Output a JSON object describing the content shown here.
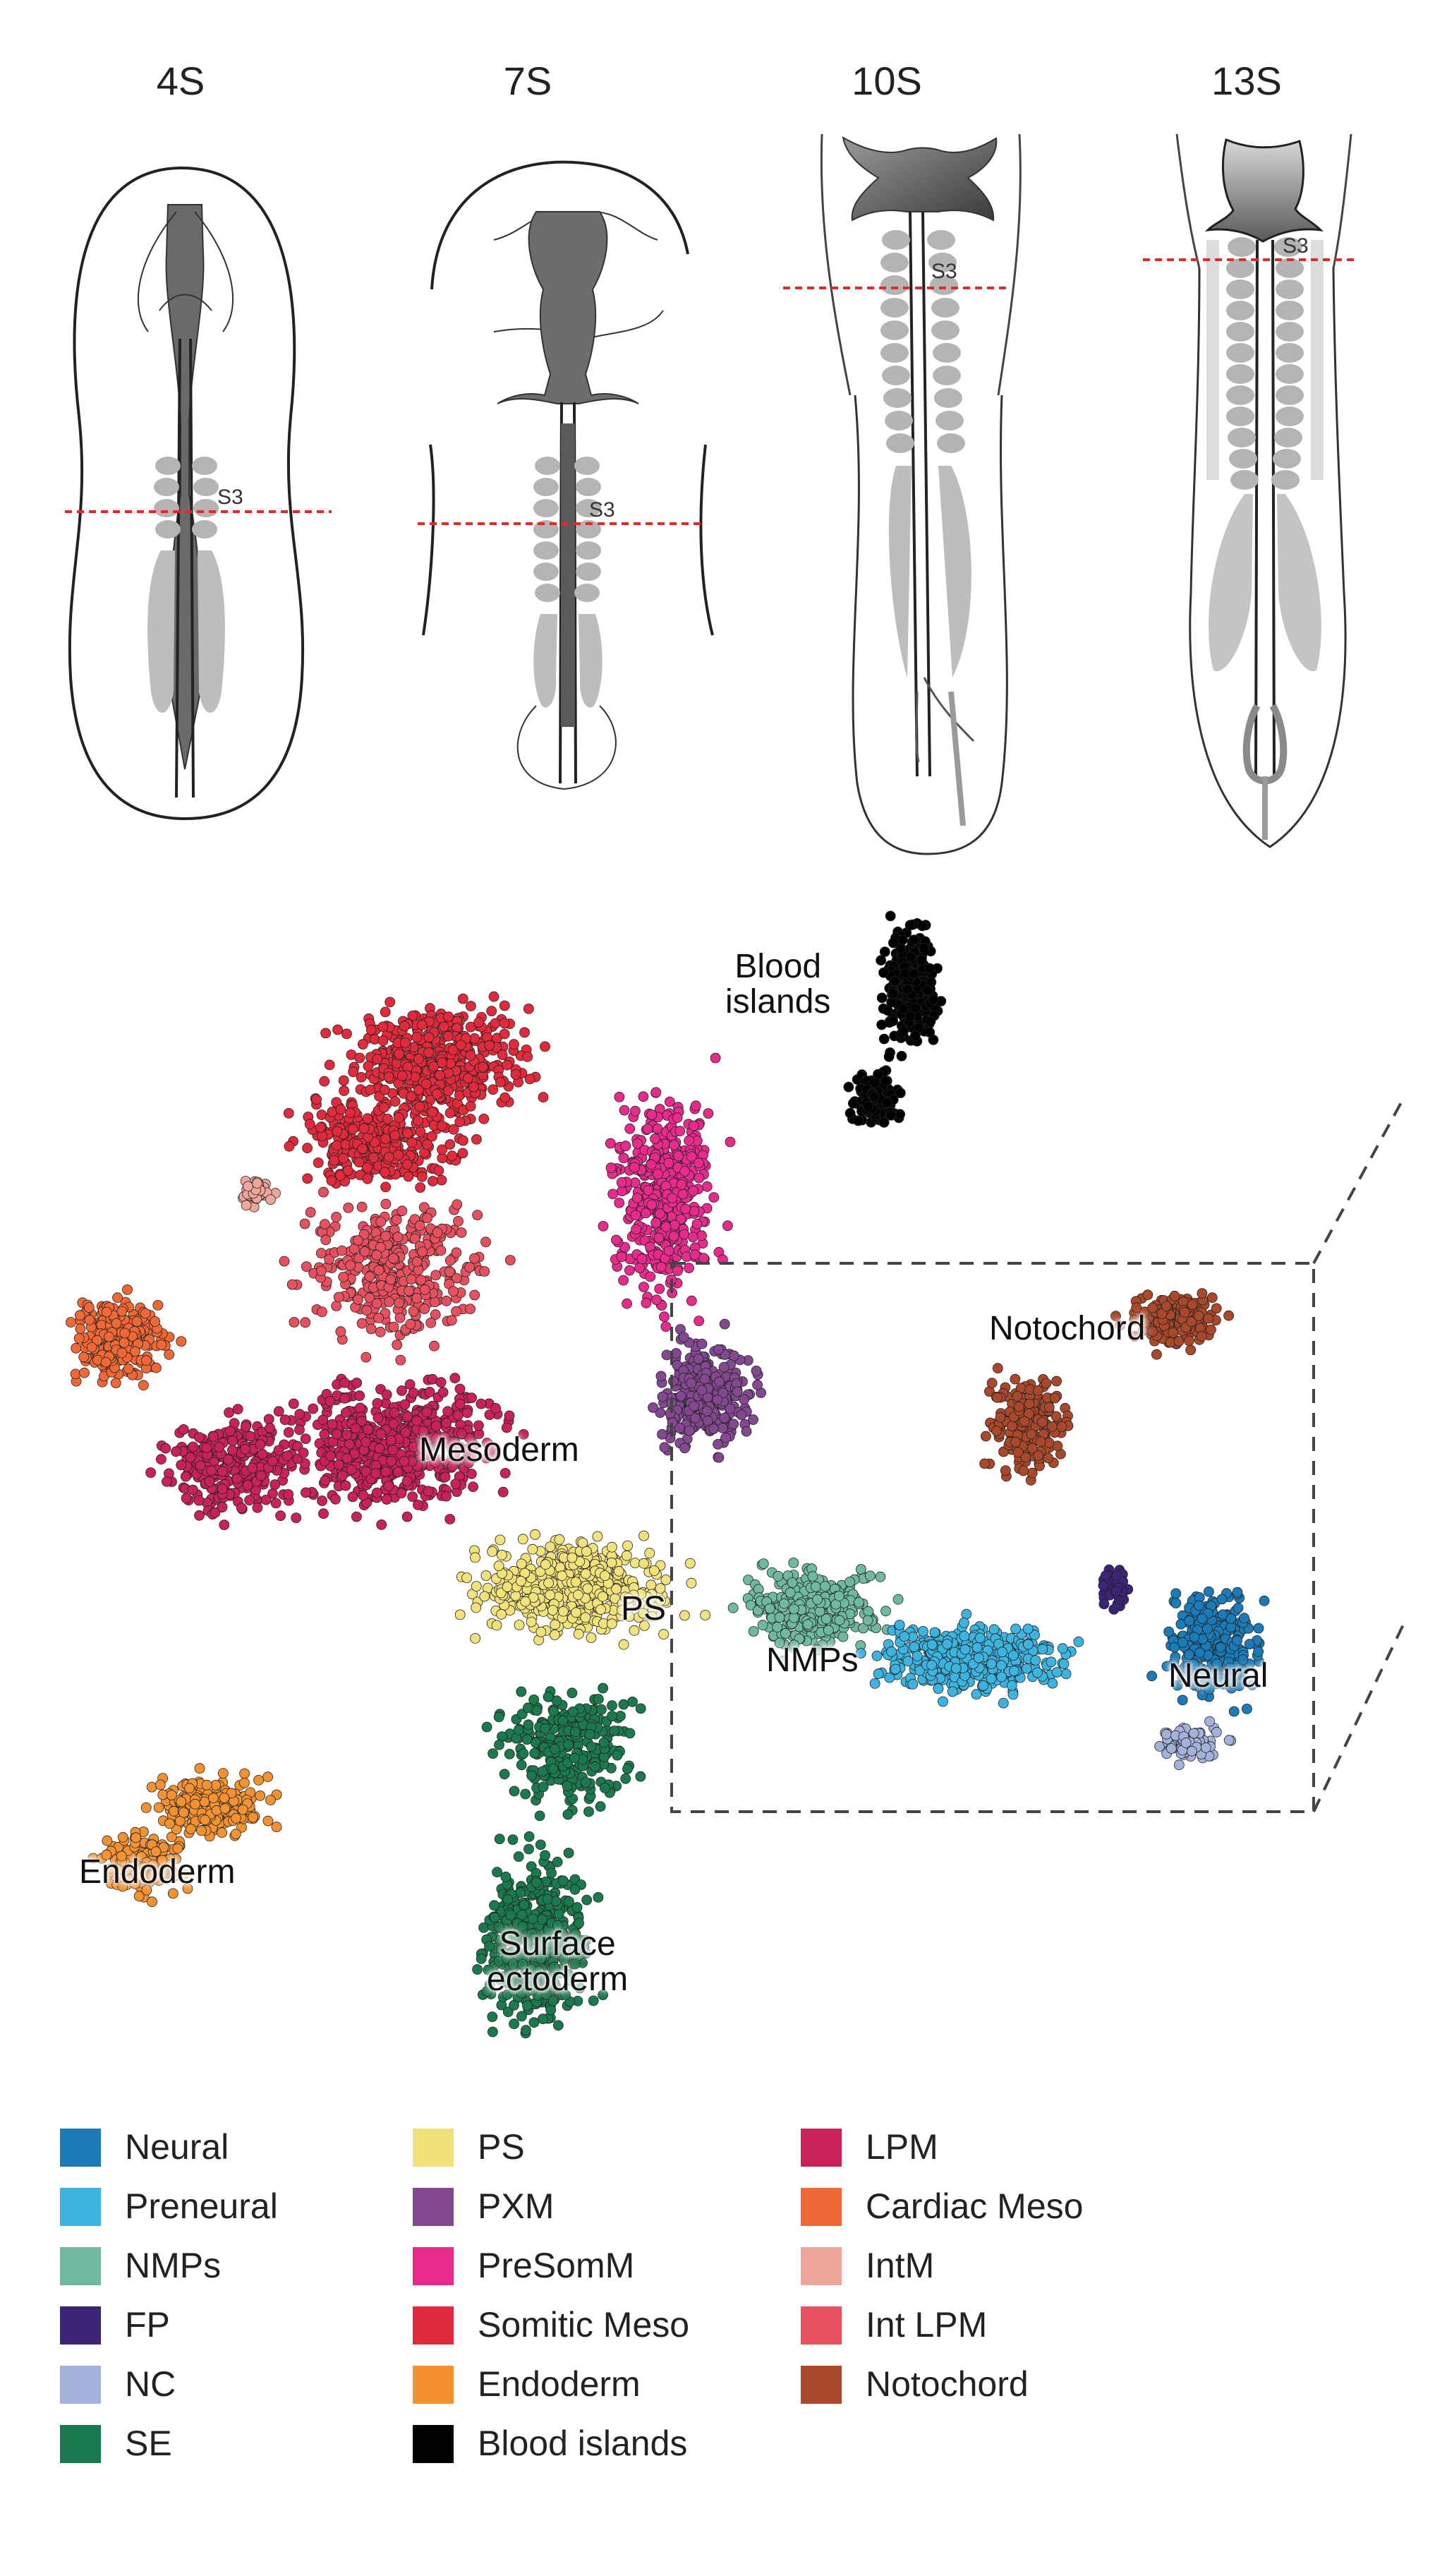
{
  "stages": [
    "4S",
    "7S",
    "10S",
    "13S"
  ],
  "somite_marker": "S3",
  "clusters": [
    {
      "key": "blood",
      "label_lines": [
        "Blood",
        "islands"
      ],
      "color": "#111111"
    },
    {
      "key": "notochord",
      "label_lines": [
        "Notochord"
      ],
      "color": "#b5542d"
    },
    {
      "key": "mesoderm",
      "label_lines": [
        "Mesoderm"
      ],
      "color": "#cf1f56"
    },
    {
      "key": "ps",
      "label_lines": [
        "PS"
      ],
      "color": "#eee07e"
    },
    {
      "key": "nmps",
      "label_lines": [
        "NMPs"
      ],
      "color": "#71b89f"
    },
    {
      "key": "neural",
      "label_lines": [
        "Neural"
      ],
      "color": "#1585c2"
    },
    {
      "key": "endoderm",
      "label_lines": [
        "Endoderm"
      ],
      "color": "#f29a2e"
    },
    {
      "key": "surface",
      "label_lines": [
        "Surface",
        "ectoderm"
      ],
      "color": "#1b7a4d"
    }
  ],
  "legend": [
    [
      {
        "label": "Neural",
        "color": "#1a7bb8"
      },
      {
        "label": "Preneural",
        "color": "#3db4e0"
      },
      {
        "label": "NMPs",
        "color": "#6fb9a0"
      },
      {
        "label": "FP",
        "color": "#3c2478"
      },
      {
        "label": "NC",
        "color": "#a3b2da"
      },
      {
        "label": "SE",
        "color": "#1b7a4d"
      }
    ],
    [
      {
        "label": "PS",
        "color": "#f1e27c"
      },
      {
        "label": "PXM",
        "color": "#844890"
      },
      {
        "label": "PreSomM",
        "color": "#e82a8c"
      },
      {
        "label": "Somitic Meso",
        "color": "#e12a3c"
      },
      {
        "label": "Endoderm",
        "color": "#f49232"
      },
      {
        "label": "Blood islands",
        "color": "#000000"
      }
    ],
    [
      {
        "label": "LPM",
        "color": "#c9215a"
      },
      {
        "label": "Cardiac Meso",
        "color": "#ef6836"
      },
      {
        "label": "IntM",
        "color": "#eea59a"
      },
      {
        "label": "Int LPM",
        "color": "#e6505f"
      },
      {
        "label": "Notochord",
        "color": "#a9482a"
      }
    ]
  ]
}
